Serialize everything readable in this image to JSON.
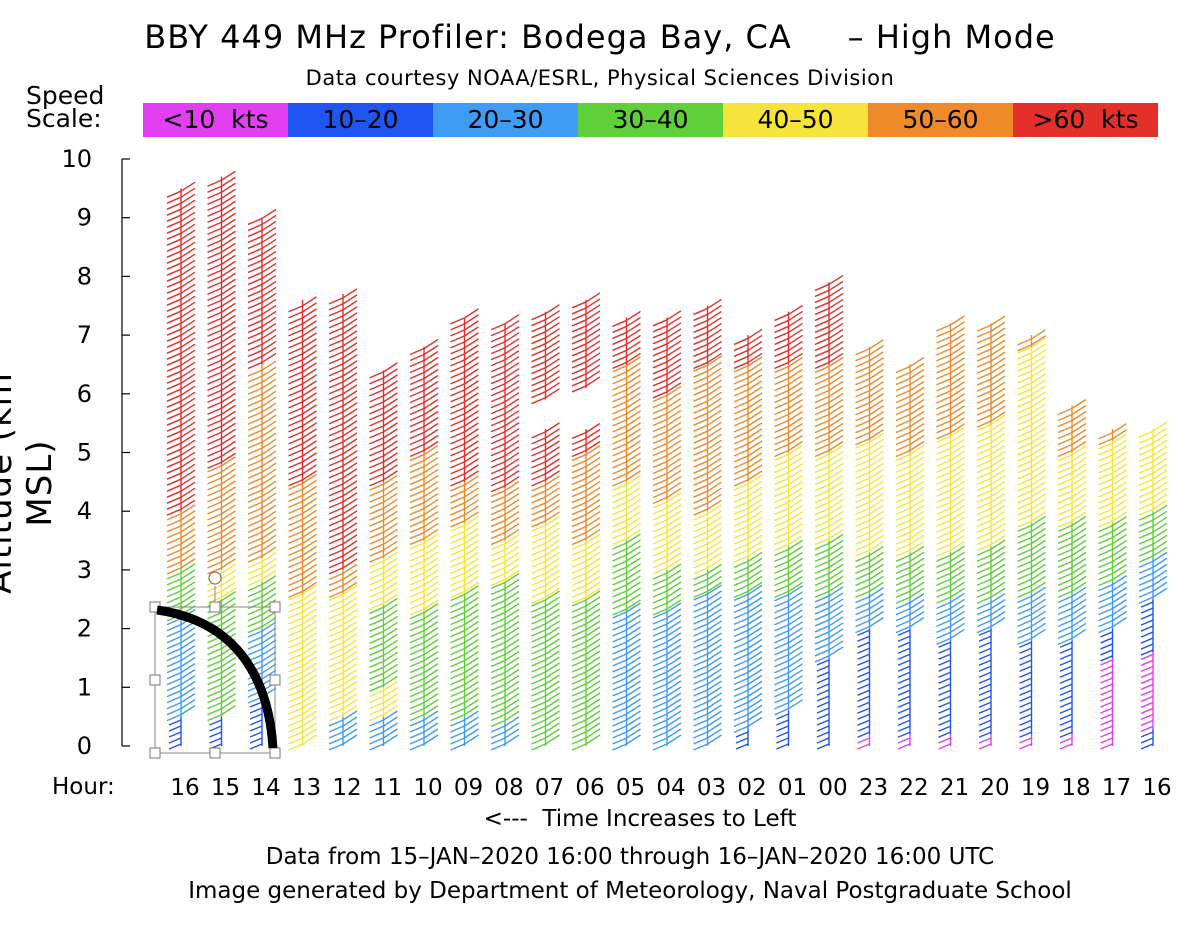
{
  "title": "BBY 449 MHz Profiler: Bodega Bay, CA     – High Mode",
  "credit": "Data courtesy NOAA/ESRL, Physical Sciences Division",
  "speed_scale": {
    "label_line1": "Speed",
    "label_line2": "Scale:",
    "bins": [
      {
        "label": "<10  kts",
        "color": "#e040f0"
      },
      {
        "label": "10–20",
        "color": "#1f55f0"
      },
      {
        "label": "20–30",
        "color": "#3f9cf5"
      },
      {
        "label": "30–40",
        "color": "#5fcf3a"
      },
      {
        "label": "40–50",
        "color": "#f7e43a"
      },
      {
        "label": "50–60",
        "color": "#ef8a2a"
      },
      {
        "label": ">60  kts",
        "color": "#e3302a"
      }
    ]
  },
  "hour_label": "Hour:",
  "xlabel": "<---  Time Increases to Left",
  "range_text": "Data from 15–JAN–2020 16:00 through 16–JAN–2020 16:00 UTC",
  "generated_text": "Image generated by Department of Meteorology, Naval Postgraduate School",
  "chart_data": {
    "type": "wind-barb profile",
    "ylabel": "Altitude (km MSL)",
    "xlabel": "<---  Time Increases to Left",
    "ylim": [
      0,
      10
    ],
    "yticks": [
      "0",
      "1",
      "2",
      "3",
      "4",
      "5",
      "6",
      "7",
      "8",
      "9",
      "10"
    ],
    "hours": [
      "16",
      "15",
      "14",
      "13",
      "12",
      "11",
      "10",
      "09",
      "08",
      "07",
      "06",
      "05",
      "04",
      "03",
      "02",
      "01",
      "00",
      "23",
      "22",
      "21",
      "20",
      "19",
      "18",
      "17",
      "16"
    ],
    "speed_bins_kts": [
      [
        0,
        10
      ],
      [
        10,
        20
      ],
      [
        20,
        30
      ],
      [
        30,
        40
      ],
      [
        40,
        50
      ],
      [
        50,
        60
      ],
      [
        60,
        999
      ]
    ],
    "columns": [
      {
        "hour": "16",
        "top_km": 9.5,
        "layers": [
          [
            0,
            0.5,
            "10-20"
          ],
          [
            0.5,
            2.2,
            "20-30"
          ],
          [
            2.2,
            3.0,
            "30-40"
          ],
          [
            3.0,
            4.0,
            "50-60"
          ],
          [
            4.0,
            9.5,
            ">60"
          ]
        ]
      },
      {
        "hour": "15",
        "top_km": 9.7,
        "layers": [
          [
            0,
            0.5,
            "10-20"
          ],
          [
            0.5,
            2.5,
            "30-40"
          ],
          [
            2.5,
            3.0,
            "40-50"
          ],
          [
            3.0,
            4.8,
            "50-60"
          ],
          [
            4.8,
            9.7,
            ">60"
          ]
        ]
      },
      {
        "hour": "14",
        "top_km": 9.0,
        "layers": [
          [
            0,
            0.8,
            "10-20"
          ],
          [
            0.8,
            2.0,
            "20-30"
          ],
          [
            2.0,
            2.8,
            "30-40"
          ],
          [
            2.8,
            3.2,
            "40-50"
          ],
          [
            3.2,
            6.5,
            "50-60"
          ],
          [
            6.5,
            9.0,
            ">60"
          ]
        ]
      },
      {
        "hour": "13",
        "top_km": 7.6,
        "layers": [
          [
            0,
            2.6,
            "40-50"
          ],
          [
            2.6,
            4.5,
            "50-60"
          ],
          [
            4.5,
            7.6,
            ">60"
          ]
        ]
      },
      {
        "hour": "12",
        "top_km": 7.7,
        "layers": [
          [
            0,
            0.5,
            "20-30"
          ],
          [
            0.5,
            2.6,
            "40-50"
          ],
          [
            2.6,
            3.0,
            "50-60"
          ],
          [
            3.0,
            7.7,
            ">60"
          ]
        ]
      },
      {
        "hour": "11",
        "top_km": 6.4,
        "layers": [
          [
            0,
            0.5,
            "20-30"
          ],
          [
            0.5,
            1.0,
            "40-50"
          ],
          [
            1.0,
            2.4,
            "30-40"
          ],
          [
            2.4,
            3.2,
            "40-50"
          ],
          [
            3.2,
            4.5,
            "50-60"
          ],
          [
            4.5,
            6.4,
            ">60"
          ]
        ]
      },
      {
        "hour": "10",
        "top_km": 6.8,
        "layers": [
          [
            0,
            0.5,
            "20-30"
          ],
          [
            0.5,
            2.3,
            "30-40"
          ],
          [
            2.3,
            3.5,
            "40-50"
          ],
          [
            3.5,
            5.0,
            "50-60"
          ],
          [
            5.0,
            6.8,
            ">60"
          ]
        ]
      },
      {
        "hour": "09",
        "top_km": 7.3,
        "layers": [
          [
            0,
            0.5,
            "20-30"
          ],
          [
            0.5,
            2.6,
            "30-40"
          ],
          [
            2.6,
            3.8,
            "40-50"
          ],
          [
            3.8,
            4.5,
            "50-60"
          ],
          [
            4.5,
            7.3,
            ">60"
          ]
        ]
      },
      {
        "hour": "08",
        "top_km": 7.2,
        "layers": [
          [
            0,
            0.4,
            "20-30"
          ],
          [
            0.4,
            2.8,
            "30-40"
          ],
          [
            2.8,
            3.5,
            "40-50"
          ],
          [
            3.5,
            4.4,
            "50-60"
          ],
          [
            4.4,
            7.2,
            ">60"
          ]
        ]
      },
      {
        "hour": "07",
        "top_km": 7.4,
        "layers": [
          [
            0,
            2.5,
            "30-40"
          ],
          [
            2.5,
            3.8,
            "40-50"
          ],
          [
            3.8,
            4.5,
            "50-60"
          ],
          [
            4.5,
            5.4,
            ">60"
          ],
          [
            5.9,
            7.4,
            ">60"
          ]
        ]
      },
      {
        "hour": "06",
        "top_km": 7.6,
        "layers": [
          [
            0,
            2.5,
            "30-40"
          ],
          [
            2.5,
            3.5,
            "40-50"
          ],
          [
            3.5,
            5.0,
            "50-60"
          ],
          [
            5.0,
            5.4,
            ">60"
          ],
          [
            6.1,
            7.6,
            ">60"
          ]
        ]
      },
      {
        "hour": "05",
        "top_km": 7.3,
        "layers": [
          [
            0,
            2.3,
            "20-30"
          ],
          [
            2.3,
            3.5,
            "30-40"
          ],
          [
            3.5,
            4.5,
            "40-50"
          ],
          [
            4.5,
            6.5,
            "50-60"
          ],
          [
            6.5,
            7.3,
            ">60"
          ]
        ]
      },
      {
        "hour": "04",
        "top_km": 7.3,
        "layers": [
          [
            0,
            2.3,
            "20-30"
          ],
          [
            2.3,
            3.0,
            "30-40"
          ],
          [
            3.0,
            4.2,
            "40-50"
          ],
          [
            4.2,
            6.0,
            "50-60"
          ],
          [
            6.0,
            7.3,
            ">60"
          ]
        ]
      },
      {
        "hour": "03",
        "top_km": 7.5,
        "layers": [
          [
            0,
            2.6,
            "20-30"
          ],
          [
            2.6,
            3.0,
            "30-40"
          ],
          [
            3.0,
            4.0,
            "40-50"
          ],
          [
            4.0,
            6.5,
            "50-60"
          ],
          [
            6.5,
            7.5,
            ">60"
          ]
        ]
      },
      {
        "hour": "02",
        "top_km": 7.0,
        "layers": [
          [
            0,
            0.3,
            "10-20"
          ],
          [
            0.3,
            2.6,
            "20-30"
          ],
          [
            2.6,
            3.2,
            "30-40"
          ],
          [
            3.2,
            4.5,
            "40-50"
          ],
          [
            4.5,
            6.5,
            "50-60"
          ],
          [
            6.5,
            7.0,
            ">60"
          ]
        ]
      },
      {
        "hour": "01",
        "top_km": 7.4,
        "layers": [
          [
            0,
            0.6,
            "10-20"
          ],
          [
            0.6,
            2.6,
            "20-30"
          ],
          [
            2.6,
            3.4,
            "30-40"
          ],
          [
            3.4,
            5.0,
            "40-50"
          ],
          [
            5.0,
            6.5,
            "50-60"
          ],
          [
            6.5,
            7.4,
            ">60"
          ]
        ]
      },
      {
        "hour": "00",
        "top_km": 7.9,
        "layers": [
          [
            0,
            1.5,
            "10-20"
          ],
          [
            1.5,
            2.6,
            "20-30"
          ],
          [
            2.6,
            3.5,
            "30-40"
          ],
          [
            3.5,
            5.0,
            "40-50"
          ],
          [
            5.0,
            6.5,
            "50-60"
          ],
          [
            6.5,
            7.9,
            ">60"
          ]
        ]
      },
      {
        "hour": "23",
        "top_km": 6.8,
        "layers": [
          [
            0,
            0.2,
            "<10"
          ],
          [
            0.2,
            2.0,
            "10-20"
          ],
          [
            2.0,
            2.6,
            "20-30"
          ],
          [
            2.6,
            3.3,
            "30-40"
          ],
          [
            3.3,
            5.2,
            "40-50"
          ],
          [
            5.2,
            6.8,
            "50-60"
          ]
        ]
      },
      {
        "hour": "22",
        "top_km": 6.5,
        "layers": [
          [
            0,
            0.2,
            "<10"
          ],
          [
            0.2,
            2.0,
            "10-20"
          ],
          [
            2.0,
            2.5,
            "20-30"
          ],
          [
            2.5,
            3.3,
            "30-40"
          ],
          [
            3.3,
            5.0,
            "40-50"
          ],
          [
            5.0,
            6.5,
            "50-60"
          ]
        ]
      },
      {
        "hour": "21",
        "top_km": 7.2,
        "layers": [
          [
            0,
            0.2,
            "<10"
          ],
          [
            0.2,
            1.8,
            "10-20"
          ],
          [
            1.8,
            2.5,
            "20-30"
          ],
          [
            2.5,
            3.3,
            "30-40"
          ],
          [
            3.3,
            5.3,
            "40-50"
          ],
          [
            5.3,
            7.2,
            "50-60"
          ]
        ]
      },
      {
        "hour": "20",
        "top_km": 7.2,
        "layers": [
          [
            0,
            0.2,
            "<10"
          ],
          [
            0.2,
            2.0,
            "10-20"
          ],
          [
            2.0,
            2.5,
            "20-30"
          ],
          [
            2.5,
            3.4,
            "30-40"
          ],
          [
            3.4,
            5.5,
            "40-50"
          ],
          [
            5.5,
            7.2,
            "50-60"
          ]
        ]
      },
      {
        "hour": "19",
        "top_km": 7.0,
        "layers": [
          [
            0,
            0.2,
            "<10"
          ],
          [
            0.2,
            1.8,
            "10-20"
          ],
          [
            1.8,
            2.6,
            "20-30"
          ],
          [
            2.6,
            3.8,
            "30-40"
          ],
          [
            3.8,
            6.8,
            "40-50"
          ],
          [
            6.8,
            7.0,
            "50-60"
          ]
        ]
      },
      {
        "hour": "18",
        "top_km": 5.8,
        "layers": [
          [
            0,
            0.2,
            "<10"
          ],
          [
            0.2,
            1.8,
            "10-20"
          ],
          [
            1.8,
            2.6,
            "20-30"
          ],
          [
            2.6,
            3.8,
            "30-40"
          ],
          [
            3.8,
            5.0,
            "40-50"
          ],
          [
            5.0,
            5.8,
            "50-60"
          ]
        ]
      },
      {
        "hour": "17",
        "top_km": 5.4,
        "layers": [
          [
            0,
            1.5,
            "<10"
          ],
          [
            1.5,
            2.0,
            "10-20"
          ],
          [
            2.0,
            2.8,
            "20-30"
          ],
          [
            2.8,
            3.8,
            "30-40"
          ],
          [
            3.8,
            5.2,
            "40-50"
          ],
          [
            5.2,
            5.4,
            "50-60"
          ]
        ]
      },
      {
        "hour": "16",
        "top_km": 5.4,
        "layers": [
          [
            0,
            0.3,
            "10-20"
          ],
          [
            0.3,
            1.6,
            "<10"
          ],
          [
            1.6,
            2.5,
            "10-20"
          ],
          [
            2.5,
            3.2,
            "20-30"
          ],
          [
            3.2,
            4.0,
            "30-40"
          ],
          [
            4.0,
            5.4,
            "40-50"
          ]
        ]
      }
    ]
  }
}
